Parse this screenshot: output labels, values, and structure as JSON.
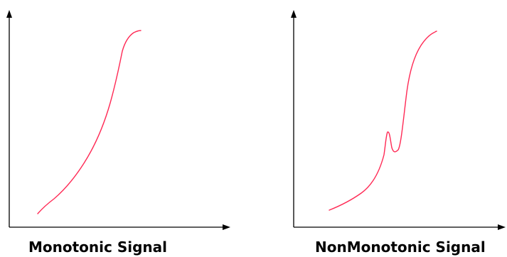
{
  "colors": {
    "background": "#ffffff",
    "axis": "#000000",
    "signal": "#ff2a55"
  },
  "panels": [
    {
      "caption": "Monotonic Signal",
      "shape": "monotonic"
    },
    {
      "caption": "NonMonotonic Signal",
      "shape": "non-monotonic"
    }
  ]
}
